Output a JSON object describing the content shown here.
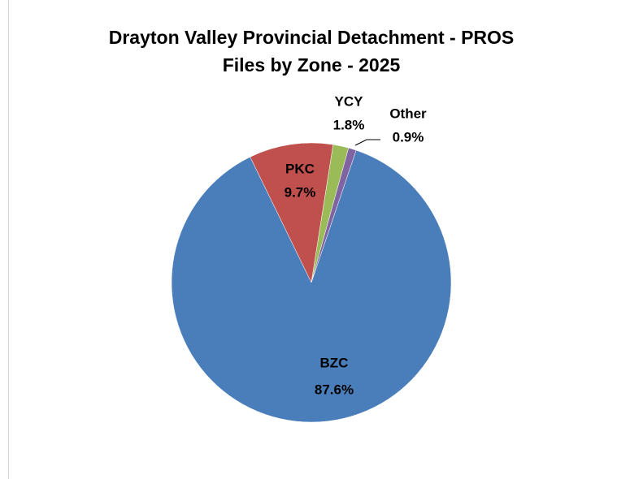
{
  "chart_data": {
    "type": "pie",
    "title": [
      "Drayton Valley Provincial Detachment - PROS",
      "Files by Zone - 2025"
    ],
    "categories": [
      "BZC",
      "PKC",
      "YCY",
      "Other"
    ],
    "values": [
      87.6,
      9.7,
      1.8,
      0.9
    ],
    "value_labels": [
      "87.6%",
      "9.7%",
      "1.8%",
      "0.9%"
    ],
    "colors": [
      "#4a7ebb",
      "#c0504d",
      "#9bbb59",
      "#8064a2"
    ]
  }
}
